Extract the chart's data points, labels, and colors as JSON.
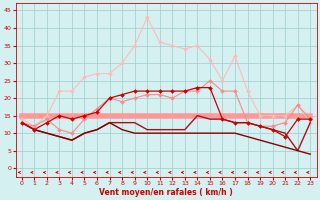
{
  "x": [
    0,
    1,
    2,
    3,
    4,
    5,
    6,
    7,
    8,
    9,
    10,
    11,
    12,
    13,
    14,
    15,
    16,
    17,
    18,
    19,
    20,
    21,
    22,
    23
  ],
  "lines": [
    {
      "y": [
        14,
        12,
        15,
        22,
        22,
        26,
        27,
        27,
        30,
        35,
        43,
        36,
        35,
        34,
        35,
        31,
        25,
        32,
        22,
        15,
        15,
        15,
        18,
        13
      ],
      "color": "#ffbbbb",
      "marker": "D",
      "markersize": 2.0,
      "linewidth": 0.8,
      "zorder": 3
    },
    {
      "y": [
        13,
        12,
        14,
        11,
        10,
        14,
        17,
        20,
        19,
        20,
        21,
        21,
        20,
        22,
        22,
        25,
        22,
        22,
        13,
        12,
        12,
        13,
        18,
        14
      ],
      "color": "#ff8888",
      "marker": "D",
      "markersize": 2.0,
      "linewidth": 0.8,
      "zorder": 4
    },
    {
      "y": [
        15,
        15,
        15,
        15,
        15,
        15,
        15,
        15,
        15,
        15,
        15,
        15,
        15,
        15,
        15,
        15,
        15,
        15,
        15,
        15,
        15,
        15,
        15,
        15
      ],
      "color": "#ff9999",
      "marker": null,
      "markersize": 0,
      "linewidth": 4.0,
      "zorder": 2
    },
    {
      "y": [
        13,
        11,
        13,
        15,
        14,
        15,
        16,
        20,
        21,
        22,
        22,
        22,
        22,
        22,
        23,
        23,
        14,
        13,
        13,
        12,
        11,
        9,
        14,
        14
      ],
      "color": "#cc0000",
      "marker": "D",
      "markersize": 2.0,
      "linewidth": 0.9,
      "zorder": 6
    },
    {
      "y": [
        13,
        11,
        10,
        9,
        8,
        10,
        11,
        13,
        13,
        13,
        11,
        11,
        11,
        11,
        15,
        14,
        14,
        13,
        13,
        12,
        11,
        10,
        5,
        13
      ],
      "color": "#aa1111",
      "marker": null,
      "markersize": 0,
      "linewidth": 1.0,
      "zorder": 5
    },
    {
      "y": [
        13,
        11,
        10,
        9,
        8,
        10,
        11,
        13,
        11,
        10,
        10,
        10,
        10,
        10,
        10,
        10,
        10,
        10,
        9,
        8,
        7,
        6,
        5,
        4
      ],
      "color": "#880000",
      "marker": null,
      "markersize": 0,
      "linewidth": 1.0,
      "zorder": 5
    }
  ],
  "xlabel": "Vent moyen/en rafales ( km/h )",
  "xlim": [
    -0.5,
    23.5
  ],
  "ylim": [
    -2.5,
    47
  ],
  "yticks": [
    0,
    5,
    10,
    15,
    20,
    25,
    30,
    35,
    40,
    45
  ],
  "xticks": [
    0,
    1,
    2,
    3,
    4,
    5,
    6,
    7,
    8,
    9,
    10,
    11,
    12,
    13,
    14,
    15,
    16,
    17,
    18,
    19,
    20,
    21,
    22,
    23
  ],
  "bg_color": "#d4f0f0",
  "grid_color": "#a0cccc",
  "tick_color": "#cc0000",
  "label_color": "#cc0000",
  "arrow_color": "#cc0000"
}
